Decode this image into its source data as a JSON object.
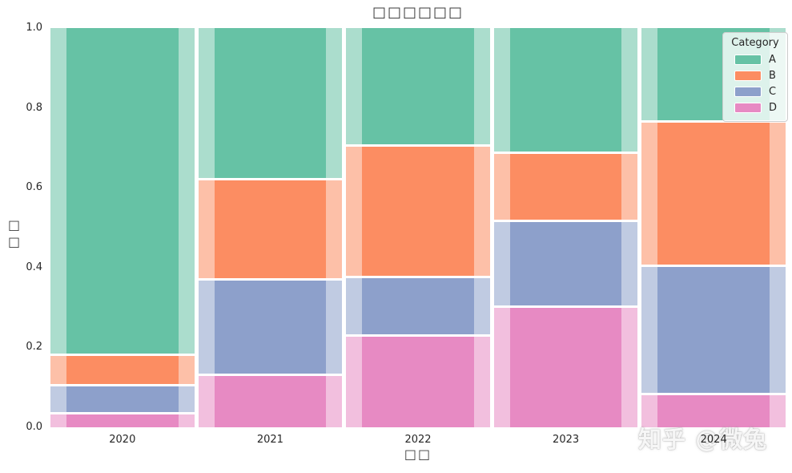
{
  "title": "□□□□□□",
  "x_axis": {
    "label": "□□",
    "ticks": [
      "2020",
      "2021",
      "2022",
      "2023",
      "2024"
    ]
  },
  "y_axis": {
    "label": "□□",
    "ticks": [
      "1.0",
      "0.8",
      "0.6",
      "0.4",
      "0.2",
      "0.0"
    ]
  },
  "legend": {
    "title": "Category",
    "items": [
      {
        "label": "A",
        "color": "#66c2a5"
      },
      {
        "label": "B",
        "color": "#fc8d62"
      },
      {
        "label": "C",
        "color": "#8da0cb"
      },
      {
        "label": "D",
        "color": "#e78ac3"
      }
    ]
  },
  "watermark": "知乎 @微兔",
  "chart_data": {
    "type": "bar",
    "subtype": "stacked-normalized",
    "title": "□□□□□□",
    "xlabel": "□□",
    "ylabel": "□□",
    "ylim": [
      0.0,
      1.0
    ],
    "grid": false,
    "legend_position": "upper right",
    "categories": [
      "2020",
      "2021",
      "2022",
      "2023",
      "2024"
    ],
    "stack_order_bottom_to_top": [
      "D",
      "C",
      "B",
      "A"
    ],
    "series": [
      {
        "name": "A",
        "color": "#66c2a5",
        "values": [
          0.815,
          0.375,
          0.292,
          0.309,
          0.23
        ]
      },
      {
        "name": "B",
        "color": "#fc8d62",
        "values": [
          0.077,
          0.251,
          0.329,
          0.171,
          0.362
        ]
      },
      {
        "name": "C",
        "color": "#8da0cb",
        "values": [
          0.07,
          0.239,
          0.147,
          0.215,
          0.322
        ]
      },
      {
        "name": "D",
        "color": "#e78ac3",
        "values": [
          0.038,
          0.135,
          0.232,
          0.305,
          0.086
        ]
      }
    ]
  }
}
